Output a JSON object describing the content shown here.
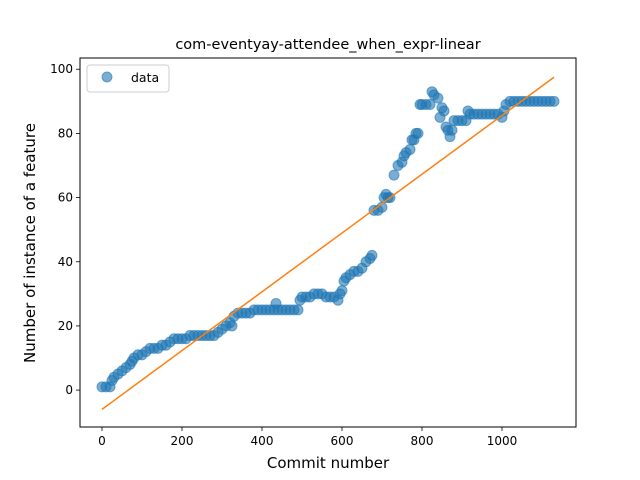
{
  "chart_data": {
    "type": "scatter",
    "title": "com-eventyay-attendee_when_expr-linear",
    "xlabel": "Commit number",
    "ylabel": "Number of instance of a feature",
    "xlim": [
      -55,
      1185
    ],
    "ylim": [
      -11.5,
      103.5
    ],
    "xticks": [
      0,
      200,
      400,
      600,
      800,
      1000
    ],
    "yticks": [
      0,
      20,
      40,
      60,
      80,
      100
    ],
    "grid": false,
    "legend": {
      "position": "top-left",
      "entries": [
        "data"
      ]
    },
    "colors": {
      "data": "#1f77b4",
      "fit": "#ff7f0e"
    },
    "series": [
      {
        "name": "data",
        "kind": "scatter",
        "points": [
          [
            0,
            1
          ],
          [
            10,
            1
          ],
          [
            20,
            1
          ],
          [
            25,
            3
          ],
          [
            30,
            4
          ],
          [
            40,
            5
          ],
          [
            50,
            6
          ],
          [
            60,
            7
          ],
          [
            70,
            8
          ],
          [
            75,
            9
          ],
          [
            80,
            10
          ],
          [
            90,
            11
          ],
          [
            100,
            11
          ],
          [
            110,
            12
          ],
          [
            120,
            13
          ],
          [
            130,
            13
          ],
          [
            140,
            13
          ],
          [
            150,
            14
          ],
          [
            160,
            14
          ],
          [
            170,
            15
          ],
          [
            180,
            16
          ],
          [
            190,
            16
          ],
          [
            200,
            16
          ],
          [
            210,
            16
          ],
          [
            220,
            17
          ],
          [
            230,
            17
          ],
          [
            240,
            17
          ],
          [
            250,
            17
          ],
          [
            260,
            17
          ],
          [
            270,
            17
          ],
          [
            280,
            17
          ],
          [
            290,
            18
          ],
          [
            300,
            19
          ],
          [
            310,
            20
          ],
          [
            320,
            21
          ],
          [
            325,
            20
          ],
          [
            330,
            23
          ],
          [
            340,
            24
          ],
          [
            350,
            24
          ],
          [
            360,
            24
          ],
          [
            370,
            24
          ],
          [
            380,
            25
          ],
          [
            390,
            25
          ],
          [
            400,
            25
          ],
          [
            410,
            25
          ],
          [
            420,
            25
          ],
          [
            430,
            25
          ],
          [
            435,
            27
          ],
          [
            440,
            25
          ],
          [
            450,
            25
          ],
          [
            460,
            25
          ],
          [
            470,
            25
          ],
          [
            480,
            25
          ],
          [
            490,
            25
          ],
          [
            495,
            28
          ],
          [
            500,
            29
          ],
          [
            510,
            29
          ],
          [
            520,
            29
          ],
          [
            530,
            30
          ],
          [
            540,
            30
          ],
          [
            550,
            30
          ],
          [
            560,
            29
          ],
          [
            570,
            29
          ],
          [
            580,
            29
          ],
          [
            590,
            28
          ],
          [
            595,
            30
          ],
          [
            600,
            31
          ],
          [
            605,
            34
          ],
          [
            610,
            35
          ],
          [
            620,
            36
          ],
          [
            630,
            37
          ],
          [
            640,
            37
          ],
          [
            650,
            38
          ],
          [
            660,
            40
          ],
          [
            670,
            41
          ],
          [
            675,
            42
          ],
          [
            680,
            56
          ],
          [
            690,
            56
          ],
          [
            700,
            57
          ],
          [
            705,
            60
          ],
          [
            710,
            61
          ],
          [
            715,
            60
          ],
          [
            720,
            60
          ],
          [
            730,
            67
          ],
          [
            740,
            70
          ],
          [
            750,
            71
          ],
          [
            755,
            73
          ],
          [
            760,
            74
          ],
          [
            770,
            75
          ],
          [
            775,
            78
          ],
          [
            780,
            78
          ],
          [
            785,
            80
          ],
          [
            790,
            80
          ],
          [
            795,
            89
          ],
          [
            800,
            89
          ],
          [
            810,
            89
          ],
          [
            820,
            89
          ],
          [
            825,
            93
          ],
          [
            830,
            92
          ],
          [
            840,
            91
          ],
          [
            845,
            85
          ],
          [
            850,
            88
          ],
          [
            855,
            87
          ],
          [
            860,
            82
          ],
          [
            865,
            81
          ],
          [
            870,
            79
          ],
          [
            875,
            81
          ],
          [
            880,
            84
          ],
          [
            890,
            84
          ],
          [
            900,
            84
          ],
          [
            910,
            84
          ],
          [
            915,
            87
          ],
          [
            920,
            86
          ],
          [
            930,
            86
          ],
          [
            940,
            86
          ],
          [
            950,
            86
          ],
          [
            960,
            86
          ],
          [
            970,
            86
          ],
          [
            980,
            86
          ],
          [
            990,
            86
          ],
          [
            1000,
            85
          ],
          [
            1005,
            87
          ],
          [
            1010,
            89
          ],
          [
            1020,
            90
          ],
          [
            1030,
            90
          ],
          [
            1040,
            90
          ],
          [
            1050,
            90
          ],
          [
            1060,
            90
          ],
          [
            1070,
            90
          ],
          [
            1080,
            90
          ],
          [
            1090,
            90
          ],
          [
            1100,
            90
          ],
          [
            1110,
            90
          ],
          [
            1120,
            90
          ],
          [
            1130,
            90
          ]
        ]
      },
      {
        "name": "",
        "kind": "line",
        "points": [
          [
            0,
            -6
          ],
          [
            1130,
            97.5
          ]
        ]
      }
    ]
  }
}
